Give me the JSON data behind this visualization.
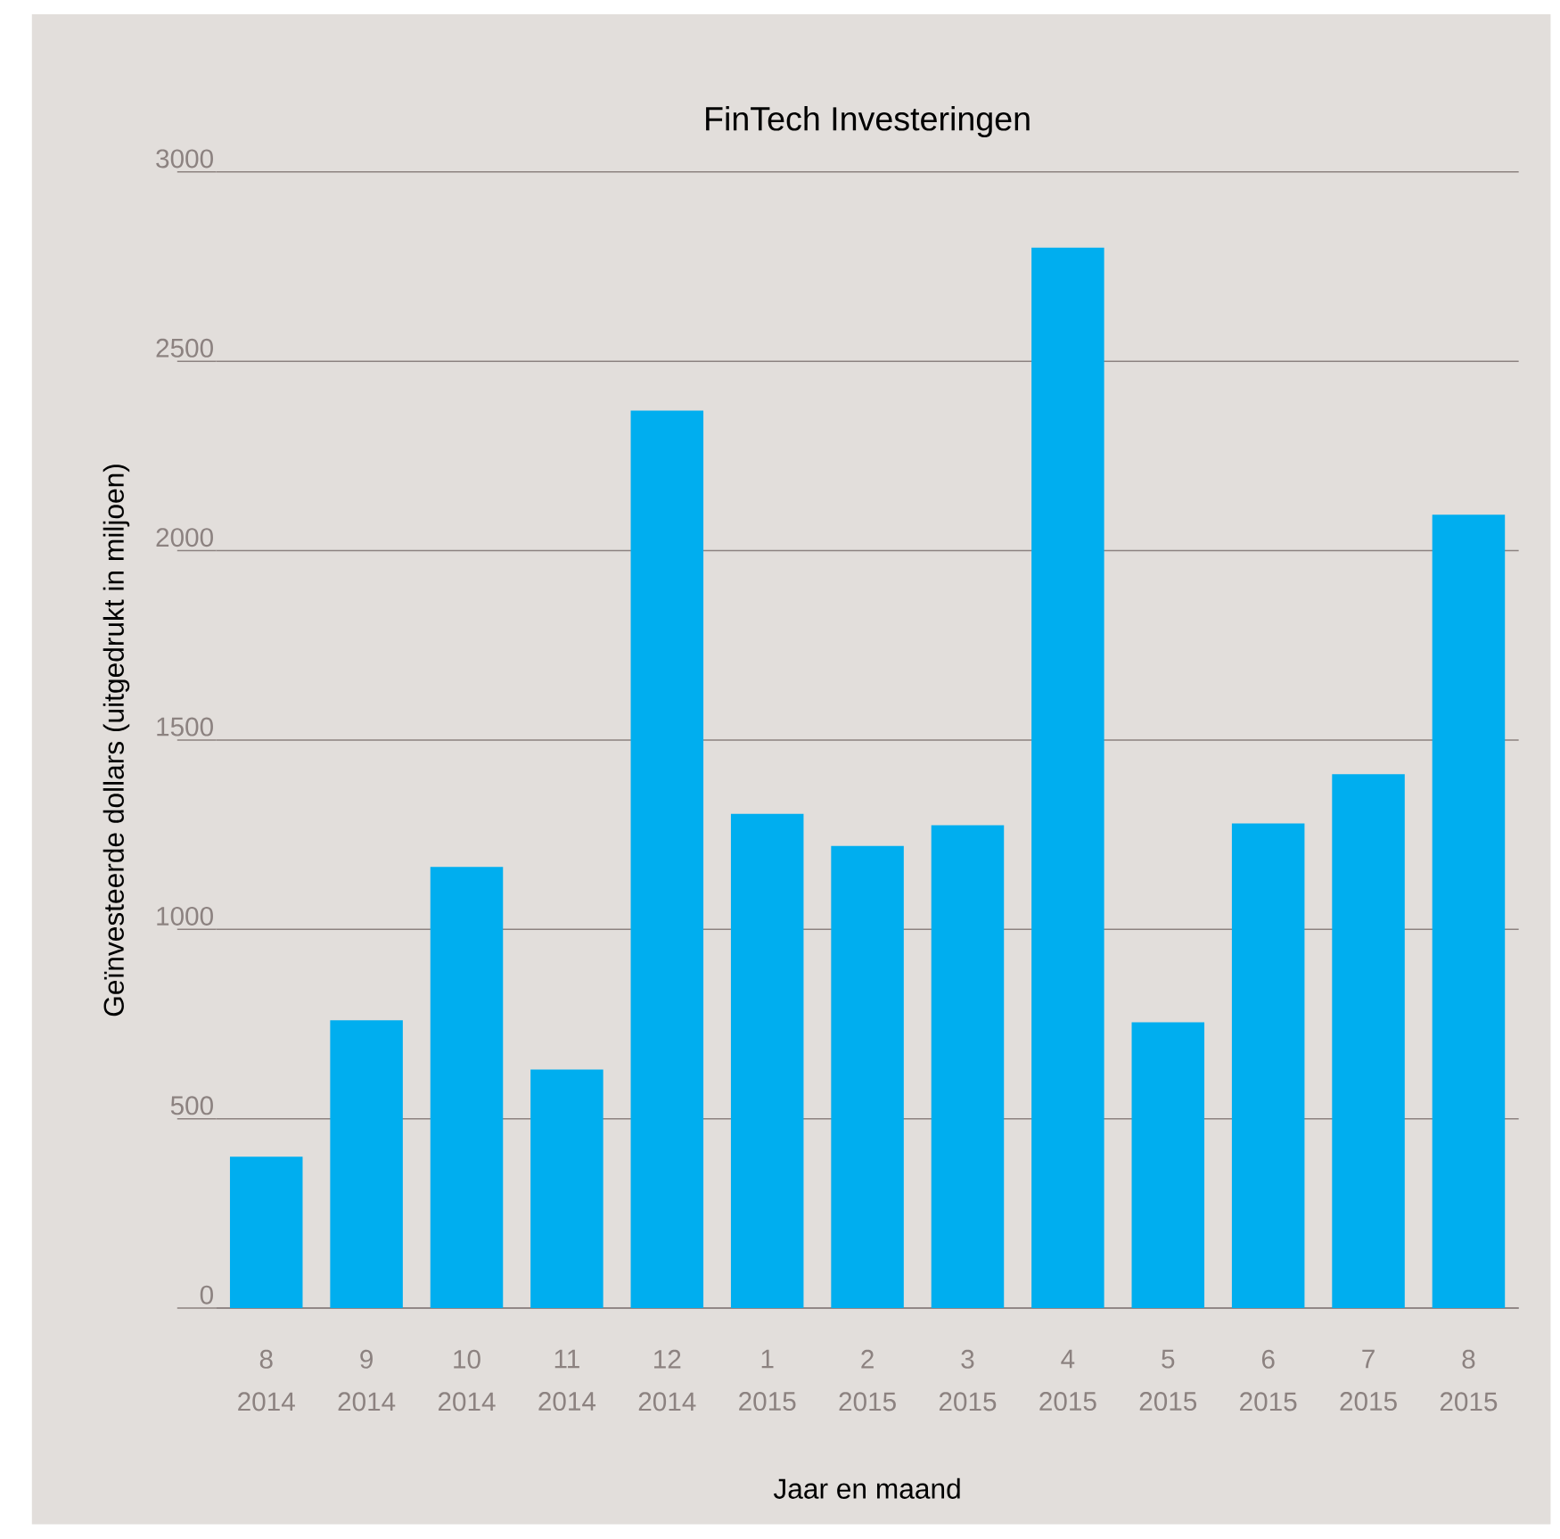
{
  "chart_data": {
    "type": "bar",
    "title": "FinTech Investeringen",
    "xlabel": "Jaar en maand",
    "ylabel": "Geïnvesteerde dollars (uitgedrukt in miljoen)",
    "categories": [
      "8 2014",
      "9 2014",
      "10 2014",
      "11 2014",
      "12 2014",
      "1 2015",
      "2 2015",
      "3 2015",
      "4 2015",
      "5 2015",
      "6 2015",
      "7 2015",
      "8 2015"
    ],
    "values": [
      400,
      760,
      1165,
      630,
      2370,
      1305,
      1220,
      1275,
      2800,
      755,
      1280,
      1410,
      2095
    ],
    "color": "#00aeef",
    "ylim": [
      0,
      3000
    ],
    "yticks": [
      0,
      500,
      1000,
      1500,
      2000,
      2500,
      3000
    ],
    "grid": "y"
  }
}
